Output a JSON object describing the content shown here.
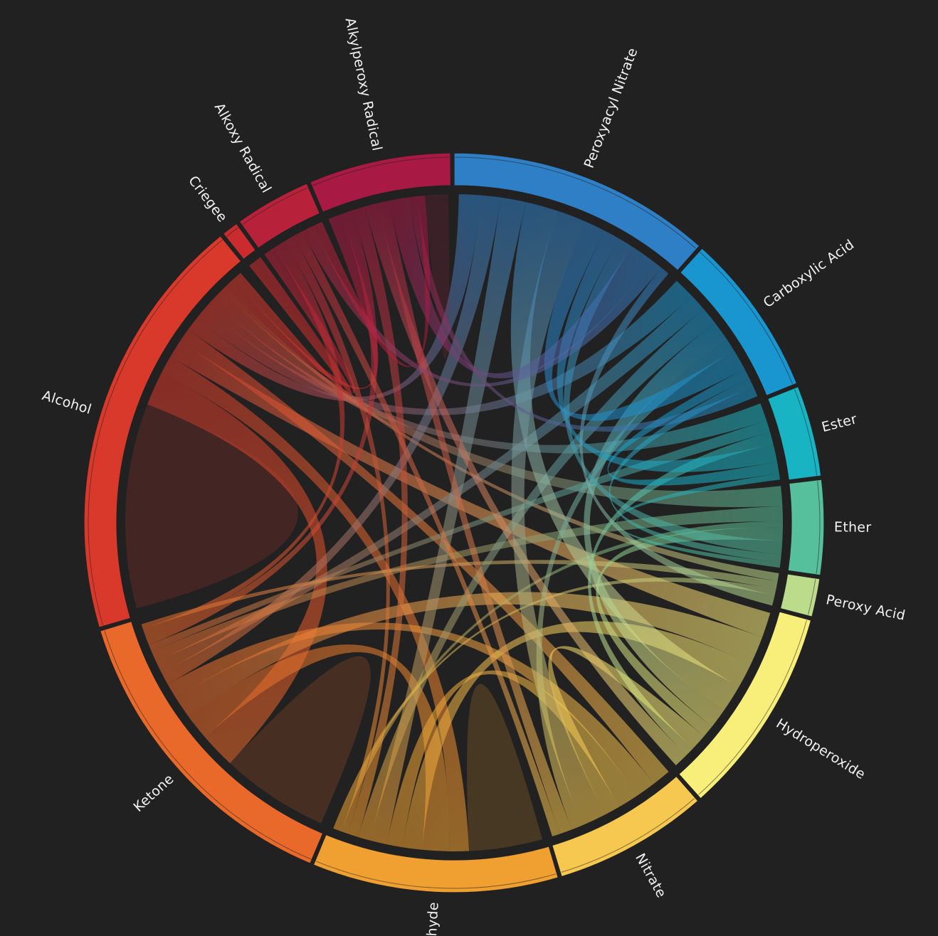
{
  "diagram": {
    "type": "chord",
    "background": "#222121",
    "groups": [
      {
        "id": "peroxyacyl_nitrate",
        "label": "Peroxyacyl Nitrate",
        "color": "#2f7fc6",
        "size": 14.5
      },
      {
        "id": "carboxylic_acid",
        "label": "Carboxylic Acid",
        "color": "#1996cf",
        "size": 9.0
      },
      {
        "id": "ester",
        "label": "Ester",
        "color": "#19b4c3",
        "size": 5.0
      },
      {
        "id": "ether",
        "label": "Ether",
        "color": "#55c09b",
        "size": 5.2
      },
      {
        "id": "peroxy_acid",
        "label": "Peroxy Acid",
        "color": "#bcdc8c",
        "size": 2.1
      },
      {
        "id": "hydroperoxide",
        "label": "Hydroperoxide",
        "color": "#f8ee7a",
        "size": 11.5
      },
      {
        "id": "nitrate",
        "label": "Nitrate",
        "color": "#f6c84f",
        "size": 8.5
      },
      {
        "id": "aldehyde",
        "label": "Aldehyde",
        "color": "#f09f31",
        "size": 13.5
      },
      {
        "id": "ketone",
        "label": "Ketone",
        "color": "#e8692a",
        "size": 17.5
      },
      {
        "id": "alcohol",
        "label": "Alcohol",
        "color": "#d8392b",
        "size": 23.5
      },
      {
        "id": "criegee",
        "label": "Criegee",
        "color": "#c92b2f",
        "size": 0.9
      },
      {
        "id": "alkoxy_radical",
        "label": "Alkoxy Radical",
        "color": "#b8213a",
        "size": 4.2
      },
      {
        "id": "alkylperoxy_radical",
        "label": "Alkylperoxy Radical",
        "color": "#a81944",
        "size": 7.8
      }
    ],
    "links": [
      {
        "source": "alcohol",
        "target": "alcohol",
        "value": 9.0
      },
      {
        "source": "ketone",
        "target": "ketone",
        "value": 4.5
      },
      {
        "source": "aldehyde",
        "target": "aldehyde",
        "value": 3.0
      },
      {
        "source": "alcohol",
        "target": "ketone",
        "value": 3.0
      },
      {
        "source": "alcohol",
        "target": "aldehyde",
        "value": 1.6
      },
      {
        "source": "alcohol",
        "target": "hydroperoxide",
        "value": 1.6
      },
      {
        "source": "alcohol",
        "target": "nitrate",
        "value": 1.2
      },
      {
        "source": "alcohol",
        "target": "peroxyacyl_nitrate",
        "value": 1.2
      },
      {
        "source": "alcohol",
        "target": "carboxylic_acid",
        "value": 1.2
      },
      {
        "source": "alcohol",
        "target": "ester",
        "value": 0.9
      },
      {
        "source": "alcohol",
        "target": "ether",
        "value": 1.2
      },
      {
        "source": "alcohol",
        "target": "peroxy_acid",
        "value": 0.4
      },
      {
        "source": "alcohol",
        "target": "alkylperoxy_radical",
        "value": 0.9
      },
      {
        "source": "alcohol",
        "target": "alkoxy_radical",
        "value": 0.6
      },
      {
        "source": "ketone",
        "target": "aldehyde",
        "value": 2.2
      },
      {
        "source": "ketone",
        "target": "hydroperoxide",
        "value": 1.8
      },
      {
        "source": "ketone",
        "target": "nitrate",
        "value": 1.3
      },
      {
        "source": "ketone",
        "target": "peroxyacyl_nitrate",
        "value": 1.1
      },
      {
        "source": "ketone",
        "target": "carboxylic_acid",
        "value": 1.0
      },
      {
        "source": "ketone",
        "target": "ether",
        "value": 0.9
      },
      {
        "source": "ketone",
        "target": "ester",
        "value": 0.6
      },
      {
        "source": "ketone",
        "target": "alkylperoxy_radical",
        "value": 0.8
      },
      {
        "source": "ketone",
        "target": "alkoxy_radical",
        "value": 0.6
      },
      {
        "source": "ketone",
        "target": "peroxy_acid",
        "value": 0.4
      },
      {
        "source": "aldehyde",
        "target": "hydroperoxide",
        "value": 1.6
      },
      {
        "source": "aldehyde",
        "target": "nitrate",
        "value": 1.3
      },
      {
        "source": "aldehyde",
        "target": "peroxyacyl_nitrate",
        "value": 1.4
      },
      {
        "source": "aldehyde",
        "target": "carboxylic_acid",
        "value": 1.0
      },
      {
        "source": "aldehyde",
        "target": "alkylperoxy_radical",
        "value": 0.9
      },
      {
        "source": "aldehyde",
        "target": "alkoxy_radical",
        "value": 0.5
      },
      {
        "source": "aldehyde",
        "target": "ether",
        "value": 0.4
      },
      {
        "source": "aldehyde",
        "target": "peroxy_acid",
        "value": 0.3
      },
      {
        "source": "hydroperoxide",
        "target": "peroxyacyl_nitrate",
        "value": 1.8
      },
      {
        "source": "hydroperoxide",
        "target": "carboxylic_acid",
        "value": 1.2
      },
      {
        "source": "hydroperoxide",
        "target": "ether",
        "value": 0.8
      },
      {
        "source": "hydroperoxide",
        "target": "nitrate",
        "value": 1.0
      },
      {
        "source": "hydroperoxide",
        "target": "ester",
        "value": 0.6
      },
      {
        "source": "hydroperoxide",
        "target": "alkylperoxy_radical",
        "value": 0.9
      },
      {
        "source": "nitrate",
        "target": "peroxyacyl_nitrate",
        "value": 1.6
      },
      {
        "source": "nitrate",
        "target": "carboxylic_acid",
        "value": 0.7
      },
      {
        "source": "nitrate",
        "target": "alkylperoxy_radical",
        "value": 0.8
      },
      {
        "source": "nitrate",
        "target": "alkoxy_radical",
        "value": 0.5
      },
      {
        "source": "peroxyacyl_nitrate",
        "target": "carboxylic_acid",
        "value": 1.2
      },
      {
        "source": "peroxyacyl_nitrate",
        "target": "ester",
        "value": 0.9
      },
      {
        "source": "peroxyacyl_nitrate",
        "target": "ether",
        "value": 0.8
      },
      {
        "source": "peroxyacyl_nitrate",
        "target": "alkylperoxy_radical",
        "value": 1.4
      },
      {
        "source": "peroxyacyl_nitrate",
        "target": "alkoxy_radical",
        "value": 0.6
      },
      {
        "source": "peroxyacyl_nitrate",
        "target": "peroxy_acid",
        "value": 0.5
      },
      {
        "source": "carboxylic_acid",
        "target": "ester",
        "value": 0.6
      },
      {
        "source": "carboxylic_acid",
        "target": "ether",
        "value": 0.5
      },
      {
        "source": "carboxylic_acid",
        "target": "alkylperoxy_radical",
        "value": 0.6
      },
      {
        "source": "alkylperoxy_radical",
        "target": "alkoxy_radical",
        "value": 0.5
      },
      {
        "source": "alkylperoxy_radical",
        "target": "alkylperoxy_radical",
        "value": 0.8
      },
      {
        "source": "ester",
        "target": "ether",
        "value": 0.3
      },
      {
        "source": "criegee",
        "target": "alcohol",
        "value": 0.3
      }
    ]
  }
}
